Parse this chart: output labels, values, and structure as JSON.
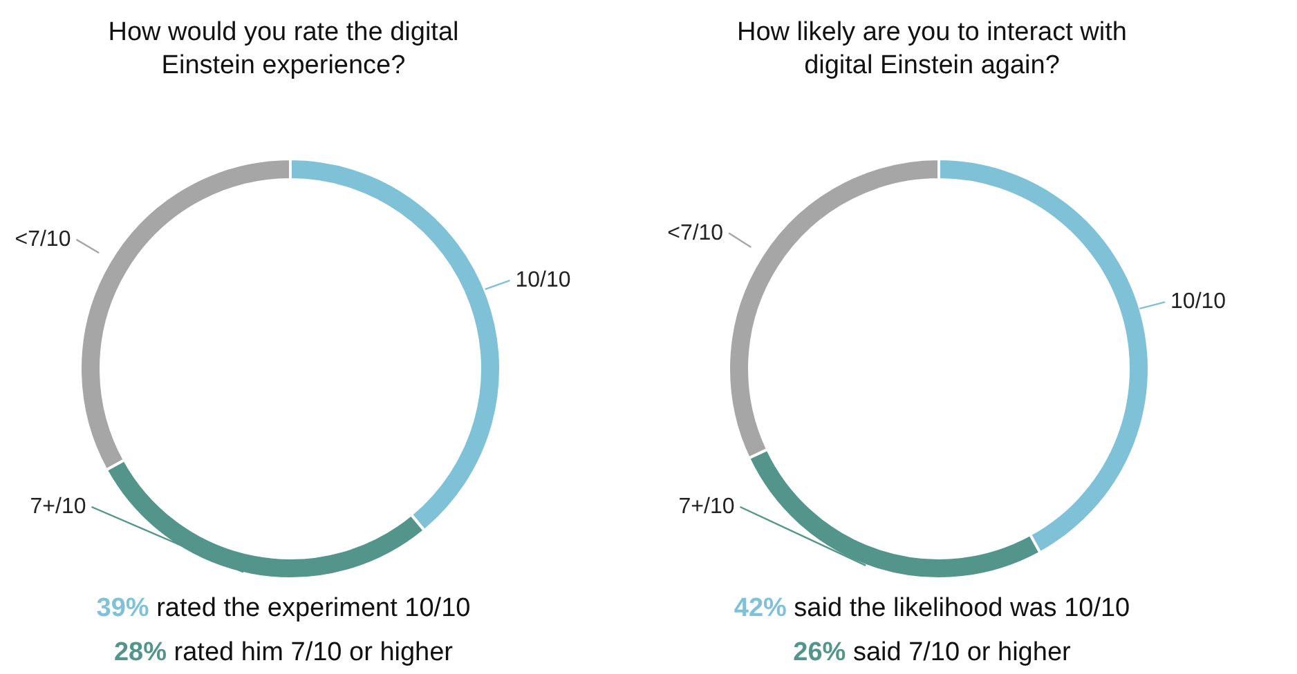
{
  "chart_data": [
    {
      "type": "donut",
      "title": "How would you rate the digital Einstein experience?",
      "categories": [
        "10/10",
        "7+/10",
        "<7/10"
      ],
      "values": [
        39,
        28,
        33
      ],
      "colors": [
        "#7fc1d6",
        "#53958a",
        "#a6a6a6"
      ],
      "annotations": [
        "39% rated the experiment 10/10",
        "28% rated him 7/10 or higher"
      ]
    },
    {
      "type": "donut",
      "title": "How likely are you to interact with digital Einstein again?",
      "categories": [
        "10/10",
        "7+/10",
        "<7/10"
      ],
      "values": [
        42,
        26,
        32
      ],
      "colors": [
        "#7fc1d6",
        "#53958a",
        "#a6a6a6"
      ],
      "annotations": [
        "42% said the likelihood was 10/10",
        "26% said 7/10 or higher"
      ]
    }
  ]
}
